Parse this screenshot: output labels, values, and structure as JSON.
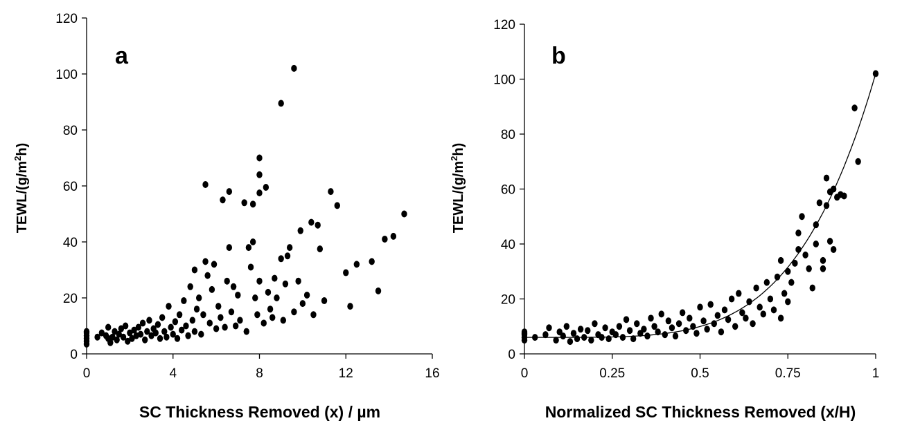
{
  "chart_data": [
    {
      "type": "scatter",
      "panel_label": "a",
      "xlabel": "SC Thickness Removed (x) / µm",
      "ylabel_parts": [
        "TEWL/(g/m",
        "2",
        "h)"
      ],
      "xlim": [
        0,
        16
      ],
      "ylim": [
        0,
        120
      ],
      "xticks": [
        0,
        4,
        8,
        12,
        16
      ],
      "xtick_labels": [
        "0",
        "4",
        "8",
        "12",
        "16"
      ],
      "yticks": [
        0,
        20,
        40,
        60,
        80,
        100,
        120
      ],
      "ytick_labels": [
        "0",
        "20",
        "40",
        "60",
        "80",
        "100",
        "120"
      ],
      "grid": false,
      "points": [
        [
          0,
          3.5
        ],
        [
          0,
          4.5
        ],
        [
          0,
          5.5
        ],
        [
          0,
          6.5
        ],
        [
          0,
          7.5
        ],
        [
          0,
          8
        ],
        [
          0.5,
          6
        ],
        [
          0.7,
          7.5
        ],
        [
          0.9,
          6.5
        ],
        [
          1,
          5.5
        ],
        [
          1,
          9.5
        ],
        [
          1.1,
          4
        ],
        [
          1.2,
          6
        ],
        [
          1.3,
          8
        ],
        [
          1.4,
          5
        ],
        [
          1.5,
          7
        ],
        [
          1.6,
          9
        ],
        [
          1.7,
          6
        ],
        [
          1.8,
          10
        ],
        [
          1.9,
          4.5
        ],
        [
          2,
          7.5
        ],
        [
          2.1,
          5.5
        ],
        [
          2.2,
          8.5
        ],
        [
          2.3,
          6.5
        ],
        [
          2.4,
          9.5
        ],
        [
          2.5,
          7
        ],
        [
          2.6,
          11
        ],
        [
          2.7,
          5
        ],
        [
          2.8,
          8
        ],
        [
          2.9,
          12
        ],
        [
          3,
          6.5
        ],
        [
          3.1,
          9
        ],
        [
          3.2,
          7.5
        ],
        [
          3.3,
          10.5
        ],
        [
          3.4,
          5.5
        ],
        [
          3.5,
          13
        ],
        [
          3.6,
          8
        ],
        [
          3.7,
          6
        ],
        [
          3.8,
          17
        ],
        [
          3.9,
          9.5
        ],
        [
          4,
          7
        ],
        [
          4.1,
          11.5
        ],
        [
          4.2,
          5.5
        ],
        [
          4.3,
          14
        ],
        [
          4.4,
          8.5
        ],
        [
          4.5,
          19
        ],
        [
          4.6,
          10
        ],
        [
          4.7,
          6.5
        ],
        [
          4.8,
          24
        ],
        [
          4.9,
          12
        ],
        [
          5,
          30
        ],
        [
          5,
          8
        ],
        [
          5.1,
          16
        ],
        [
          5.2,
          20
        ],
        [
          5.3,
          7
        ],
        [
          5.4,
          14
        ],
        [
          5.5,
          60.5
        ],
        [
          5.5,
          33
        ],
        [
          5.6,
          28
        ],
        [
          5.7,
          11
        ],
        [
          5.8,
          23
        ],
        [
          5.9,
          32
        ],
        [
          6,
          9
        ],
        [
          6.1,
          17
        ],
        [
          6.2,
          13
        ],
        [
          6.3,
          55
        ],
        [
          6.4,
          9.5
        ],
        [
          6.5,
          26
        ],
        [
          6.6,
          38
        ],
        [
          6.6,
          58
        ],
        [
          6.7,
          15
        ],
        [
          6.8,
          24
        ],
        [
          6.9,
          10
        ],
        [
          7,
          21
        ],
        [
          7.1,
          12
        ],
        [
          7.3,
          54
        ],
        [
          7.4,
          8
        ],
        [
          7.5,
          38
        ],
        [
          7.6,
          31
        ],
        [
          7.7,
          53.5
        ],
        [
          7.7,
          40
        ],
        [
          7.8,
          20
        ],
        [
          7.9,
          14
        ],
        [
          8,
          57.5
        ],
        [
          8,
          64
        ],
        [
          8,
          70
        ],
        [
          8,
          26
        ],
        [
          8.2,
          11
        ],
        [
          8.3,
          59.5
        ],
        [
          8.4,
          22
        ],
        [
          8.5,
          16
        ],
        [
          8.6,
          13
        ],
        [
          8.7,
          27
        ],
        [
          8.8,
          20
        ],
        [
          9,
          89.5
        ],
        [
          9,
          34
        ],
        [
          9.1,
          12
        ],
        [
          9.2,
          25
        ],
        [
          9.3,
          35
        ],
        [
          9.4,
          38
        ],
        [
          9.6,
          102
        ],
        [
          9.6,
          15
        ],
        [
          9.8,
          26
        ],
        [
          9.9,
          44
        ],
        [
          10,
          18
        ],
        [
          10.2,
          21
        ],
        [
          10.4,
          47
        ],
        [
          10.5,
          14
        ],
        [
          10.7,
          46
        ],
        [
          10.8,
          37.5
        ],
        [
          11,
          19
        ],
        [
          11.3,
          58
        ],
        [
          11.6,
          53
        ],
        [
          12,
          29
        ],
        [
          12.2,
          17
        ],
        [
          12.5,
          32
        ],
        [
          13.2,
          33
        ],
        [
          13.5,
          22.5
        ],
        [
          13.8,
          41
        ],
        [
          14.2,
          42
        ],
        [
          14.7,
          50
        ]
      ]
    },
    {
      "type": "scatter",
      "panel_label": "b",
      "xlabel": "Normalized SC Thickness Removed (x/H)",
      "ylabel_parts": [
        "TEWL/(g/m",
        "2",
        "h)"
      ],
      "xlim": [
        0,
        1
      ],
      "ylim": [
        0,
        120
      ],
      "xticks": [
        0,
        0.25,
        0.5,
        0.75,
        1
      ],
      "xtick_labels": [
        "0",
        "0.25",
        "0.5",
        "0.75",
        "1"
      ],
      "yticks": [
        0,
        20,
        40,
        60,
        80,
        100,
        120
      ],
      "ytick_labels": [
        "0",
        "20",
        "40",
        "60",
        "80",
        "100",
        "120"
      ],
      "grid": false,
      "trendline": true,
      "points": [
        [
          0,
          5
        ],
        [
          0,
          6
        ],
        [
          0,
          7
        ],
        [
          0,
          7.5
        ],
        [
          0,
          8
        ],
        [
          0.03,
          6
        ],
        [
          0.06,
          7
        ],
        [
          0.07,
          9.5
        ],
        [
          0.09,
          5
        ],
        [
          0.1,
          8
        ],
        [
          0.11,
          6.5
        ],
        [
          0.12,
          10
        ],
        [
          0.13,
          4.5
        ],
        [
          0.14,
          7.5
        ],
        [
          0.15,
          5.5
        ],
        [
          0.16,
          9
        ],
        [
          0.17,
          6
        ],
        [
          0.18,
          8.5
        ],
        [
          0.19,
          5
        ],
        [
          0.2,
          11
        ],
        [
          0.21,
          7
        ],
        [
          0.22,
          6
        ],
        [
          0.23,
          9.5
        ],
        [
          0.24,
          5.5
        ],
        [
          0.25,
          8
        ],
        [
          0.26,
          7
        ],
        [
          0.27,
          10
        ],
        [
          0.28,
          6
        ],
        [
          0.29,
          12.5
        ],
        [
          0.3,
          8.5
        ],
        [
          0.31,
          5.5
        ],
        [
          0.32,
          11
        ],
        [
          0.33,
          7.5
        ],
        [
          0.34,
          9
        ],
        [
          0.35,
          6.5
        ],
        [
          0.36,
          13
        ],
        [
          0.37,
          10
        ],
        [
          0.38,
          8
        ],
        [
          0.39,
          14.5
        ],
        [
          0.4,
          7
        ],
        [
          0.41,
          12
        ],
        [
          0.42,
          9.5
        ],
        [
          0.43,
          6.5
        ],
        [
          0.44,
          11
        ],
        [
          0.45,
          15
        ],
        [
          0.46,
          8.5
        ],
        [
          0.47,
          13
        ],
        [
          0.48,
          10
        ],
        [
          0.49,
          7.5
        ],
        [
          0.5,
          17
        ],
        [
          0.51,
          12
        ],
        [
          0.52,
          9
        ],
        [
          0.53,
          18
        ],
        [
          0.54,
          11
        ],
        [
          0.55,
          14
        ],
        [
          0.56,
          8
        ],
        [
          0.57,
          16
        ],
        [
          0.58,
          12.5
        ],
        [
          0.59,
          20
        ],
        [
          0.6,
          10
        ],
        [
          0.61,
          22
        ],
        [
          0.62,
          15
        ],
        [
          0.63,
          13
        ],
        [
          0.64,
          19
        ],
        [
          0.65,
          11
        ],
        [
          0.66,
          24
        ],
        [
          0.67,
          17
        ],
        [
          0.68,
          14.5
        ],
        [
          0.69,
          26
        ],
        [
          0.7,
          20
        ],
        [
          0.71,
          16
        ],
        [
          0.72,
          28
        ],
        [
          0.73,
          13
        ],
        [
          0.73,
          34
        ],
        [
          0.74,
          22
        ],
        [
          0.75,
          30
        ],
        [
          0.75,
          19
        ],
        [
          0.76,
          26
        ],
        [
          0.77,
          33
        ],
        [
          0.78,
          38
        ],
        [
          0.78,
          44
        ],
        [
          0.79,
          50
        ],
        [
          0.8,
          36
        ],
        [
          0.81,
          31
        ],
        [
          0.82,
          24
        ],
        [
          0.83,
          40
        ],
        [
          0.83,
          47
        ],
        [
          0.84,
          55
        ],
        [
          0.85,
          34
        ],
        [
          0.85,
          31
        ],
        [
          0.86,
          64
        ],
        [
          0.86,
          54
        ],
        [
          0.87,
          41
        ],
        [
          0.87,
          59
        ],
        [
          0.88,
          60
        ],
        [
          0.88,
          38
        ],
        [
          0.89,
          57
        ],
        [
          0.9,
          58
        ],
        [
          0.91,
          57.5
        ],
        [
          0.94,
          89.5
        ],
        [
          0.95,
          70
        ],
        [
          1,
          102
        ]
      ]
    }
  ]
}
